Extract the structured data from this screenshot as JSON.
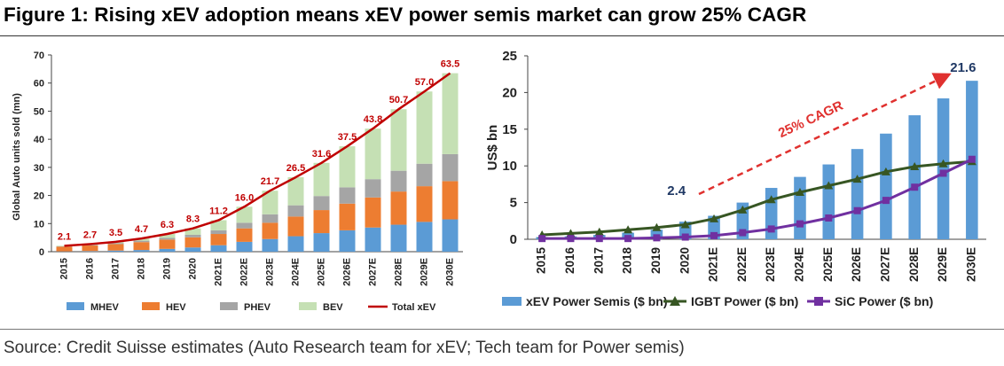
{
  "figure_title": "Figure 1: Rising xEV adoption means xEV power semis market can grow 25% CAGR",
  "source": "Source: Credit Suisse estimates (Auto Research team for xEV; Tech team for Power semis)",
  "colors": {
    "mhev": "#5b9bd5",
    "hev": "#ed7d31",
    "phev": "#a5a5a5",
    "bev": "#c5e0b4",
    "total_xev": "#c00000",
    "xev_power_semis": "#5b9bd5",
    "igbt": "#375623",
    "sic": "#7030a0",
    "cagr_arrow": "#e0312f",
    "value_label_dark": "#1f3864"
  },
  "chart_data": [
    {
      "type": "bar",
      "stacked": true,
      "categories": [
        "2015",
        "2016",
        "2017",
        "2018",
        "2019",
        "2020",
        "2021E",
        "2022E",
        "2023E",
        "2024E",
        "2025E",
        "2026E",
        "2027E",
        "2028E",
        "2029E",
        "2030E"
      ],
      "ylabel": "Global Auto units sold (mn)",
      "ylim": [
        0,
        70
      ],
      "yticks": [
        0,
        10,
        20,
        30,
        40,
        50,
        60,
        70
      ],
      "grid": false,
      "legend_position": "bottom",
      "series": [
        {
          "name": "MHEV",
          "type": "bar",
          "values": [
            0.1,
            0.2,
            0.4,
            0.6,
            1.0,
            1.5,
            2.3,
            3.5,
            4.5,
            5.5,
            6.6,
            7.6,
            8.6,
            9.6,
            10.6,
            11.5
          ]
        },
        {
          "name": "HEV",
          "type": "bar",
          "values": [
            1.7,
            2.0,
            2.3,
            2.8,
            3.3,
            3.6,
            4.0,
            4.8,
            5.8,
            7.0,
            8.2,
            9.5,
            10.7,
            11.8,
            12.7,
            13.6
          ]
        },
        {
          "name": "PHEV",
          "type": "bar",
          "values": [
            0.1,
            0.2,
            0.3,
            0.5,
            0.6,
            0.9,
            1.3,
            2.0,
            3.0,
            4.0,
            5.0,
            5.8,
            6.5,
            7.4,
            8.0,
            9.6
          ]
        },
        {
          "name": "BEV",
          "type": "bar",
          "values": [
            0.2,
            0.3,
            0.5,
            0.8,
            1.4,
            2.3,
            3.6,
            5.7,
            8.4,
            10.0,
            11.8,
            14.6,
            18.0,
            21.9,
            25.7,
            28.8
          ]
        },
        {
          "name": "Total xEV",
          "type": "line",
          "values": [
            2.1,
            2.7,
            3.5,
            4.7,
            6.3,
            8.3,
            11.2,
            16.0,
            21.7,
            26.5,
            31.6,
            37.5,
            43.8,
            50.7,
            57.0,
            63.5
          ]
        }
      ],
      "data_labels": [
        "2.1",
        "2.7",
        "3.5",
        "4.7",
        "6.3",
        "8.3",
        "11.2",
        "16.0",
        "21.7",
        "26.5",
        "31.6",
        "37.5",
        "43.8",
        "50.7",
        "57.0",
        "63.5"
      ]
    },
    {
      "type": "bar",
      "categories": [
        "2015",
        "2016",
        "2017",
        "2018",
        "2019",
        "2020",
        "2021E",
        "2022E",
        "2023E",
        "2024E",
        "2025E",
        "2026E",
        "2027E",
        "2028E",
        "2029E",
        "2030E"
      ],
      "ylabel": "US$ bn",
      "ylim": [
        0,
        25
      ],
      "yticks": [
        0,
        5,
        10,
        15,
        20,
        25
      ],
      "grid": false,
      "legend_position": "bottom",
      "series": [
        {
          "name": "xEV Power Semis ($ bn)",
          "type": "bar",
          "values": [
            0.3,
            0.4,
            0.6,
            0.9,
            1.3,
            2.4,
            3.2,
            5.0,
            7.0,
            8.5,
            10.2,
            12.3,
            14.4,
            16.9,
            19.2,
            21.6
          ]
        },
        {
          "name": "IGBT Power ($ bn)",
          "type": "line",
          "values": [
            0.6,
            0.8,
            1.0,
            1.3,
            1.6,
            2.0,
            2.8,
            4.0,
            5.4,
            6.4,
            7.3,
            8.2,
            9.2,
            9.9,
            10.3,
            10.6
          ]
        },
        {
          "name": "SiC Power ($ bn)",
          "type": "line",
          "values": [
            0.1,
            0.1,
            0.1,
            0.1,
            0.2,
            0.3,
            0.5,
            0.9,
            1.4,
            2.1,
            2.9,
            3.9,
            5.3,
            7.1,
            9.0,
            10.9
          ]
        }
      ],
      "data_labels": [
        {
          "text": "2.4",
          "category": "2020"
        },
        {
          "text": "21.6",
          "category": "2030E"
        }
      ],
      "annotation": "25% CAGR"
    }
  ]
}
